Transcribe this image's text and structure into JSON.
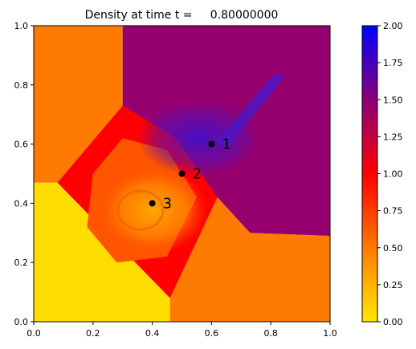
{
  "chart_data": {
    "type": "heatmap",
    "title": "Density at time t =     0.80000000",
    "xlabel": "",
    "ylabel": "",
    "xlim": [
      0,
      1
    ],
    "ylim": [
      0,
      1
    ],
    "x_ticks": [
      "0.0",
      "0.2",
      "0.4",
      "0.6",
      "0.8",
      "1.0"
    ],
    "y_ticks": [
      "0.0",
      "0.2",
      "0.4",
      "0.6",
      "0.8",
      "1.0"
    ],
    "colorbar": {
      "min": 0.0,
      "max": 2.0,
      "ticks": [
        "0.00",
        "0.25",
        "0.50",
        "0.75",
        "1.00",
        "1.25",
        "1.50",
        "1.75",
        "2.00"
      ],
      "colors": [
        {
          "value": 0.0,
          "color": "#ffe800"
        },
        {
          "value": 0.5,
          "color": "#ff7a00"
        },
        {
          "value": 1.0,
          "color": "#ff0000"
        },
        {
          "value": 1.5,
          "color": "#8a007a"
        },
        {
          "value": 2.0,
          "color": "#0000ff"
        }
      ]
    },
    "regions": [
      {
        "name": "lower-left",
        "value": 0.05,
        "polygon": [
          [
            0,
            0
          ],
          [
            0.46,
            0
          ],
          [
            0.46,
            0.08
          ],
          [
            0.08,
            0.47
          ],
          [
            0,
            0.47
          ]
        ]
      },
      {
        "name": "upper-left",
        "value": 0.5,
        "polygon": [
          [
            0,
            1
          ],
          [
            0.3,
            1
          ],
          [
            0.3,
            0.73
          ],
          [
            0.08,
            0.47
          ],
          [
            0,
            0.47
          ]
        ]
      },
      {
        "name": "lower-right",
        "value": 0.5,
        "polygon": [
          [
            0.46,
            0
          ],
          [
            1,
            0
          ],
          [
            1,
            0.29
          ],
          [
            0.73,
            0.3
          ],
          [
            0.62,
            0.42
          ],
          [
            0.46,
            0.08
          ]
        ]
      },
      {
        "name": "upper-right",
        "value": 1.45,
        "polygon": [
          [
            0.3,
            1
          ],
          [
            1,
            1
          ],
          [
            1,
            0.29
          ],
          [
            0.73,
            0.3
          ],
          [
            0.62,
            0.42
          ],
          [
            0.3,
            0.73
          ]
        ]
      },
      {
        "name": "central-red",
        "value": 1.0,
        "polygon": [
          [
            0.08,
            0.47
          ],
          [
            0.3,
            0.73
          ],
          [
            0.48,
            0.62
          ],
          [
            0.62,
            0.42
          ],
          [
            0.46,
            0.08
          ]
        ]
      },
      {
        "name": "central-mixing",
        "value": 0.65,
        "polygon": [
          [
            0.2,
            0.5
          ],
          [
            0.3,
            0.62
          ],
          [
            0.45,
            0.58
          ],
          [
            0.55,
            0.42
          ],
          [
            0.45,
            0.22
          ],
          [
            0.28,
            0.2
          ],
          [
            0.18,
            0.32
          ]
        ]
      }
    ],
    "annotations": [
      {
        "label": "1",
        "x": 0.6,
        "y": 0.6
      },
      {
        "label": "2",
        "x": 0.5,
        "y": 0.5
      },
      {
        "label": "3",
        "x": 0.4,
        "y": 0.4
      }
    ]
  }
}
